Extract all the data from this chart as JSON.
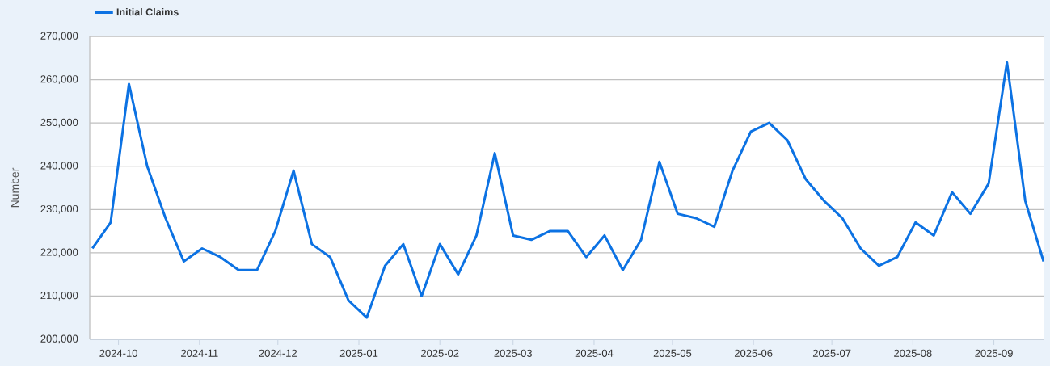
{
  "chart_data": {
    "type": "line",
    "ylabel": "Number",
    "x": [
      "2024-09-21",
      "2024-09-28",
      "2024-10-05",
      "2024-10-12",
      "2024-10-19",
      "2024-10-26",
      "2024-11-02",
      "2024-11-09",
      "2024-11-16",
      "2024-11-23",
      "2024-11-30",
      "2024-12-07",
      "2024-12-14",
      "2024-12-21",
      "2024-12-28",
      "2025-01-04",
      "2025-01-11",
      "2025-01-18",
      "2025-01-25",
      "2025-02-01",
      "2025-02-08",
      "2025-02-15",
      "2025-02-22",
      "2025-03-01",
      "2025-03-08",
      "2025-03-15",
      "2025-03-22",
      "2025-03-29",
      "2025-04-05",
      "2025-04-12",
      "2025-04-19",
      "2025-04-26",
      "2025-05-03",
      "2025-05-10",
      "2025-05-17",
      "2025-05-24",
      "2025-05-31",
      "2025-06-07",
      "2025-06-14",
      "2025-06-21",
      "2025-06-28",
      "2025-07-05",
      "2025-07-12",
      "2025-07-19",
      "2025-07-26",
      "2025-08-02",
      "2025-08-09",
      "2025-08-16",
      "2025-08-23",
      "2025-08-30",
      "2025-09-06",
      "2025-09-13",
      "2025-09-20"
    ],
    "series": [
      {
        "name": "Initial Claims",
        "color": "#0c72e3",
        "values": [
          221000,
          227000,
          259000,
          240000,
          228000,
          218000,
          221000,
          219000,
          216000,
          216000,
          225000,
          239000,
          222000,
          219000,
          209000,
          205000,
          217000,
          222000,
          210000,
          222000,
          215000,
          224000,
          243000,
          224000,
          223000,
          225000,
          225000,
          219000,
          224000,
          216000,
          223000,
          241000,
          229000,
          228000,
          226000,
          239000,
          248000,
          250000,
          246000,
          237000,
          232000,
          228000,
          221000,
          217000,
          219000,
          227000,
          224000,
          234000,
          229000,
          236000,
          264000,
          232000,
          218000
        ]
      }
    ],
    "xlim": [
      "2024-09-20",
      "2025-09-20"
    ],
    "xticks": [
      "2024-10",
      "2024-11",
      "2024-12",
      "2025-01",
      "2025-02",
      "2025-03",
      "2025-04",
      "2025-05",
      "2025-06",
      "2025-07",
      "2025-08",
      "2025-09"
    ],
    "ylim": [
      200000,
      270000
    ],
    "yticks": [
      {
        "value": 200000,
        "label": "200,000"
      },
      {
        "value": 210000,
        "label": "210,000"
      },
      {
        "value": 220000,
        "label": "220,000"
      },
      {
        "value": 230000,
        "label": "230,000"
      },
      {
        "value": 240000,
        "label": "240,000"
      },
      {
        "value": 250000,
        "label": "250,000"
      },
      {
        "value": 260000,
        "label": "260,000"
      },
      {
        "value": 270000,
        "label": "270,000"
      }
    ],
    "grid": "y",
    "legend": "top left",
    "line_style": "solid"
  }
}
